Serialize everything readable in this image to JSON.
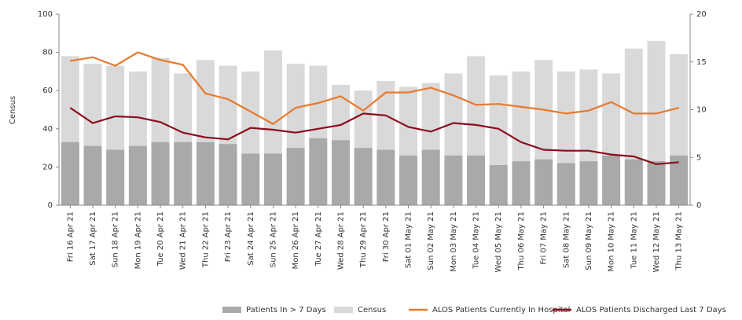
{
  "chart_data": {
    "type": "bar",
    "categories": [
      "Fri 16 Apr 21",
      "Sat 17 Apr 21",
      "Sun 18 Apr 21",
      "Mon 19 Apr 21",
      "Tue 20 Apr 21",
      "Wed 21 Apr 21",
      "Thu 22 Apr 21",
      "Fri 23 Apr 21",
      "Sat 24 Apr 21",
      "Sun 25 Apr 21",
      "Mon 26 Apr 21",
      "Tue 27 Apr 21",
      "Wed 28 Apr 21",
      "Thu 29 Apr 21",
      "Fri 30 Apr 21",
      "Sat 01 May 21",
      "Sun 02 May 21",
      "Mon 03 May 21",
      "Tue 04 May 21",
      "Wed 05 May 21",
      "Thu 06 May 21",
      "Fri 07 May 21",
      "Sat 08 May 21",
      "Sun 09 May 21",
      "Mon 10 May 21",
      "Tue 11 May 21",
      "Wed 12 May 21",
      "Thu 13 May 21"
    ],
    "ylabel": "Census",
    "ylim": [
      0,
      100
    ],
    "yticks": [
      0,
      20,
      40,
      60,
      80,
      100
    ],
    "y2lim": [
      0,
      20
    ],
    "y2ticks": [
      0,
      5,
      10,
      15,
      20
    ],
    "series": [
      {
        "name": "Census",
        "type": "bar",
        "color": "#d9d9d9",
        "values": [
          78,
          74,
          73,
          70,
          77,
          69,
          76,
          73,
          70,
          81,
          74,
          73,
          63,
          60,
          65,
          62,
          64,
          69,
          78,
          68,
          70,
          76,
          70,
          71,
          69,
          82,
          86,
          79
        ]
      },
      {
        "name": "Patients In > 7 Days",
        "type": "bar",
        "color": "#a9a9a9",
        "values": [
          33,
          31,
          29,
          31,
          33,
          33,
          33,
          32,
          27,
          27,
          30,
          35,
          34,
          30,
          29,
          26,
          29,
          26,
          26,
          21,
          23,
          24,
          22,
          23,
          26,
          24,
          23,
          26
        ]
      },
      {
        "name": "ALOS Patients Currently In Hospital",
        "type": "line",
        "axis": "y2",
        "color": "#e8792b",
        "values": [
          15.1,
          15.5,
          14.6,
          16,
          15.2,
          14.7,
          11.7,
          11.1,
          9.8,
          8.5,
          10.2,
          10.7,
          11.4,
          9.9,
          11.8,
          11.8,
          12.3,
          11.5,
          10.5,
          10.6,
          10.3,
          10,
          9.6,
          9.9,
          10.8,
          9.6,
          9.6,
          10.2
        ]
      },
      {
        "name": "ALOS Patients Discharged Last 7 Days",
        "type": "line",
        "axis": "y2",
        "color": "#8b0d1c",
        "values": [
          10.2,
          8.6,
          9.3,
          9.2,
          8.7,
          7.6,
          7.1,
          6.9,
          8.1,
          7.9,
          7.6,
          8,
          8.4,
          9.6,
          9.4,
          8.2,
          7.7,
          8.6,
          8.4,
          8,
          6.6,
          5.8,
          5.7,
          5.7,
          5.3,
          5.1,
          4.3,
          4.5
        ]
      }
    ],
    "legend_order": [
      1,
      0,
      2,
      3
    ]
  }
}
